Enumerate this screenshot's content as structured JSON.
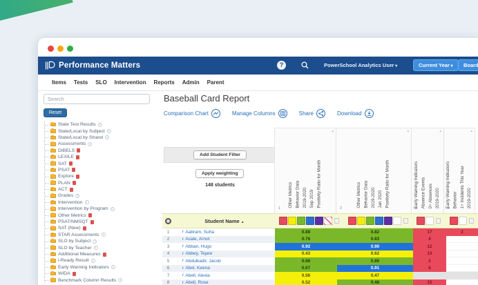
{
  "header": {
    "brand": "Performance Matters",
    "user_label": "PowerSchool Analytics User",
    "year_button_label": "Current Year",
    "boards_button_label": "Board"
  },
  "nav": {
    "items": [
      "Items",
      "Tests",
      "SLO",
      "Intervention",
      "Reports",
      "Admin",
      "Parent"
    ]
  },
  "sidebar": {
    "search_placeholder": "Search",
    "reset_label": "Reset",
    "items": [
      {
        "label": "State Test Results",
        "badge": "info"
      },
      {
        "label": "State/Local by Subject",
        "badge": "info"
      },
      {
        "label": "State/Local by Strand",
        "badge": "info"
      },
      {
        "label": "Assessments",
        "badge": "info"
      },
      {
        "label": "DIBELS",
        "badge": "alert"
      },
      {
        "label": "LEXILE",
        "badge": "alert"
      },
      {
        "label": "SAT",
        "badge": "alert"
      },
      {
        "label": "PSAT",
        "badge": "alert"
      },
      {
        "label": "Explore",
        "badge": "alert"
      },
      {
        "label": "PLAN",
        "badge": "alert"
      },
      {
        "label": "ACT",
        "badge": "alert"
      },
      {
        "label": "Grades",
        "badge": "info"
      },
      {
        "label": "Intervention",
        "badge": "info"
      },
      {
        "label": "Intervention by Program",
        "badge": "info"
      },
      {
        "label": "Other Metrics",
        "badge": "alert"
      },
      {
        "label": "PSAT/NMSQT",
        "badge": "alert"
      },
      {
        "label": "SAT (New)",
        "badge": "alert"
      },
      {
        "label": "STAR Assessments",
        "badge": "info"
      },
      {
        "label": "SLO by Subject",
        "badge": "info"
      },
      {
        "label": "SLO by Teacher",
        "badge": "info"
      },
      {
        "label": "Additional Measures",
        "badge": "alert"
      },
      {
        "label": "i-Ready Result",
        "badge": "info"
      },
      {
        "label": "Early Warning Indicators",
        "badge": "info"
      },
      {
        "label": "WIDA",
        "badge": "alert"
      },
      {
        "label": "Benchmark Column Results",
        "badge": "info"
      }
    ]
  },
  "report": {
    "title": "Baseball Card Report",
    "toolbar": [
      {
        "label": "Comparison Chart",
        "icon": "line-chart"
      },
      {
        "label": "Manage Columns",
        "icon": "columns"
      },
      {
        "label": "Share",
        "icon": "share"
      },
      {
        "label": "Download",
        "icon": "download"
      }
    ],
    "add_filter_label": "Add Student Filter",
    "apply_weighting_label": "Apply weighting",
    "student_count": "148 students"
  },
  "colors": {
    "red": "#e8495b",
    "yellow": "#f4ec0c",
    "green": "#76b82a",
    "blue": "#2b6fd4",
    "purple": "#5c2ea6",
    "white": "#ffffff",
    "navy": "#1c4d8c",
    "link": "#2a6fba"
  },
  "table": {
    "row_header": {
      "name_label": "Student Name",
      "sort": "▲"
    },
    "columns": [
      {
        "id": "1",
        "header_lines": [
          "Other Metrics",
          "Behavior Data",
          "2019-2020",
          "Sep 2019",
          "Positivity Ratio for Month"
        ],
        "swatches": [
          "red",
          "yellow",
          "green",
          "blue",
          "purple",
          "crossed"
        ]
      },
      {
        "id": "2",
        "header_lines": [
          "Other Metrics",
          "Behavior Data",
          "2019-2020",
          "Jan 2020",
          "Positivity Ratio for Month"
        ],
        "swatches": [
          "red",
          "yellow",
          "green",
          "blue",
          "purple",
          "white"
        ]
      },
      {
        "id": "3",
        "header_lines": [
          "Early Warning Indicators",
          "Absence Events",
          "0+ Absences",
          "2019-2020"
        ],
        "swatches": [
          "red",
          "white"
        ]
      },
      {
        "id": "4",
        "header_lines": [
          "Early Warning Indicators",
          "Behavior",
          "1+ Incidents This Year",
          "2019-2020"
        ],
        "swatches": [
          "red",
          "white"
        ]
      }
    ],
    "rows": [
      {
        "num": "1",
        "name": "Aabram, Suha",
        "cells": [
          {
            "value": "0.88",
            "color": "green"
          },
          {
            "value": "0.82",
            "color": "green"
          },
          {
            "value": "17",
            "color": "red"
          },
          {
            "value": "2",
            "color": "red"
          }
        ]
      },
      {
        "num": "2",
        "name": "Acale, Arnot",
        "cells": [
          {
            "value": "0.76",
            "color": "green"
          },
          {
            "value": "0.83",
            "color": "green"
          },
          {
            "value": "4",
            "color": "red"
          },
          {
            "value": "",
            "color": "empty"
          }
        ]
      },
      {
        "num": "3",
        "name": "Abban, Hugo",
        "cells": [
          {
            "value": "0.92",
            "color": "blue"
          },
          {
            "value": "0.90",
            "color": "blue"
          },
          {
            "value": "12",
            "color": "red"
          },
          {
            "value": "",
            "color": "empty"
          }
        ]
      },
      {
        "num": "4",
        "name": "Abbey, Tejare",
        "cells": [
          {
            "value": "0.43",
            "color": "yellow"
          },
          {
            "value": "0.62",
            "color": "yellow"
          },
          {
            "value": "13",
            "color": "red"
          },
          {
            "value": "",
            "color": "empty"
          }
        ]
      },
      {
        "num": "5",
        "name": "Abdulkadir, Jacob",
        "cells": [
          {
            "value": "0.68",
            "color": "green"
          },
          {
            "value": "0.86",
            "color": "green"
          },
          {
            "value": "2",
            "color": "red"
          },
          {
            "value": "",
            "color": "empty"
          }
        ]
      },
      {
        "num": "6",
        "name": "Abel, Keena",
        "cells": [
          {
            "value": "0.67",
            "color": "green"
          },
          {
            "value": "0.91",
            "color": "blue"
          },
          {
            "value": "6",
            "color": "red"
          },
          {
            "value": "",
            "color": "empty"
          }
        ]
      },
      {
        "num": "7",
        "name": "Abell, Alexia",
        "cells": [
          {
            "value": "0.56",
            "color": "yellow"
          },
          {
            "value": "0.47",
            "color": "yellow"
          },
          {
            "value": "",
            "color": "gray"
          },
          {
            "value": "",
            "color": "gray"
          }
        ]
      },
      {
        "num": "8",
        "name": "Abell, Rose",
        "cells": [
          {
            "value": "0.52",
            "color": "yellow"
          },
          {
            "value": "0.48",
            "color": "green"
          },
          {
            "value": "15",
            "color": "red"
          },
          {
            "value": "",
            "color": "empty"
          }
        ]
      }
    ]
  }
}
